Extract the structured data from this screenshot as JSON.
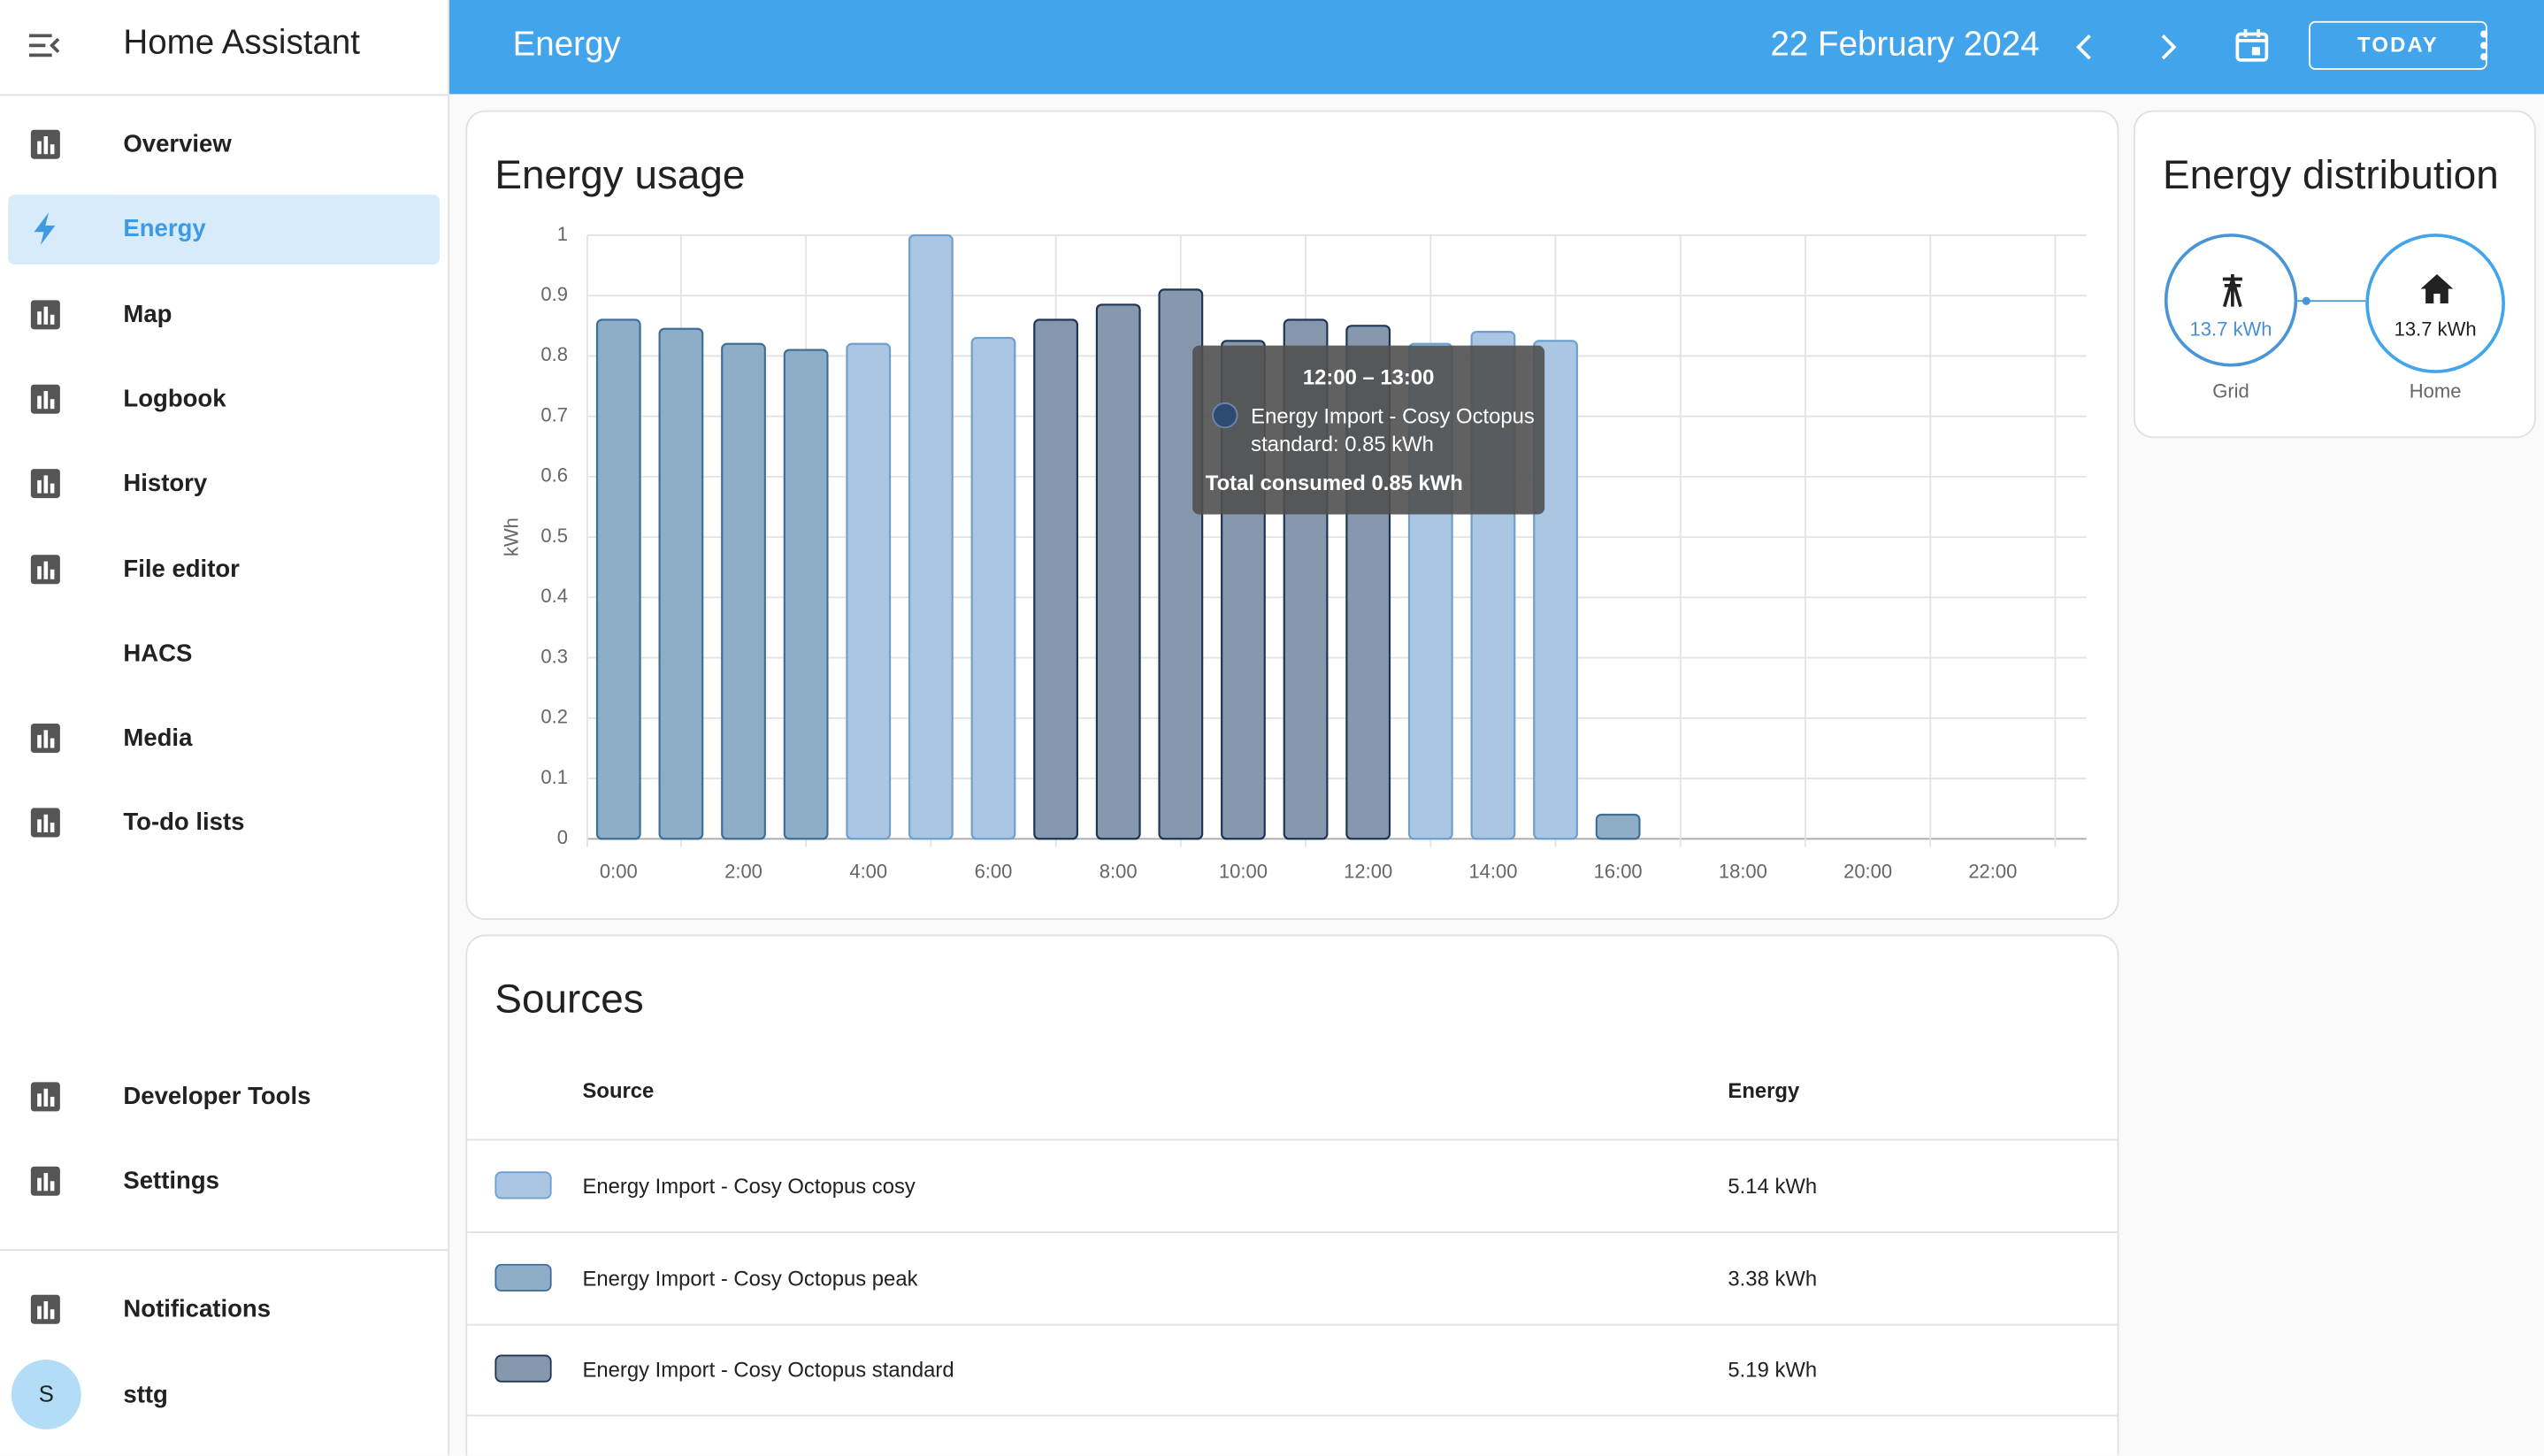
{
  "sidebar": {
    "title": "Home Assistant",
    "items": [
      "Overview",
      "Energy",
      "Map",
      "Logbook",
      "History",
      "File editor",
      "HACS",
      "Media",
      "To-do lists"
    ],
    "bottom_items": [
      "Developer Tools",
      "Settings"
    ],
    "notifications": "Notifications",
    "user": "sttg",
    "avatar": "S"
  },
  "header": {
    "title": "Energy",
    "date": "22 February 2024",
    "today": "TODAY"
  },
  "chart_data": {
    "type": "bar",
    "title": "Energy usage",
    "y_label": "kWh",
    "stacked": true,
    "categories": [
      "0:00",
      null,
      "2:00",
      null,
      "4:00",
      null,
      "6:00",
      null,
      "8:00",
      null,
      "10:00",
      null,
      "12:00",
      null,
      "14:00",
      null,
      "16:00",
      null,
      "18:00",
      null,
      "20:00",
      null,
      "22:00",
      null
    ],
    "series": [
      {
        "name": "Energy Import - Cosy Octopus cosy",
        "color": "#aac6e3",
        "values": [
          null,
          null,
          null,
          null,
          0.82,
          1,
          0.83,
          null,
          null,
          null,
          null,
          null,
          null,
          0.82,
          0.84,
          0.825,
          null,
          null,
          null,
          null,
          null,
          null,
          null,
          null
        ]
      },
      {
        "name": "Energy Import - Cosy Octopus peak",
        "color": "#8eaec8",
        "values": [
          0.86,
          0.845,
          0.82,
          0.81,
          null,
          null,
          null,
          null,
          null,
          null,
          null,
          null,
          null,
          null,
          null,
          null,
          0.04,
          null,
          null,
          null,
          null,
          null,
          null,
          null
        ]
      },
      {
        "name": "Energy Import - Cosy Octopus standard",
        "color": "#8797ae",
        "values": [
          null,
          null,
          null,
          null,
          null,
          null,
          null,
          0.86,
          0.885,
          0.91,
          0.825,
          0.86,
          0.85,
          null,
          null,
          null,
          null,
          null,
          null,
          null,
          null,
          null,
          null,
          null
        ]
      }
    ],
    "ylim": [
      0,
      1
    ],
    "yticks": [
      0,
      0.1,
      0.2,
      0.3,
      0.4,
      0.5,
      0.6,
      0.7,
      0.8,
      0.9,
      1
    ],
    "grid": true
  },
  "tooltip": {
    "time": "12:00 – 13:00",
    "series": "Energy Import - Cosy Octopus standard: 0.85 kWh",
    "total": "Total consumed 0.85 kWh"
  },
  "distribution": {
    "title": "Energy distribution",
    "grid_value": "13.7 kWh",
    "grid_label": "Grid",
    "home_value": "13.7 kWh",
    "home_label": "Home"
  },
  "sources": {
    "title": "Sources",
    "headers": [
      "Source",
      "Energy"
    ],
    "rows": [
      [
        "Energy Import - Cosy Octopus cosy",
        "5.14 kWh"
      ],
      [
        "Energy Import - Cosy Octopus peak",
        "3.38 kWh"
      ],
      [
        "Energy Import - Cosy Octopus standard",
        "5.19 kWh"
      ]
    ]
  }
}
